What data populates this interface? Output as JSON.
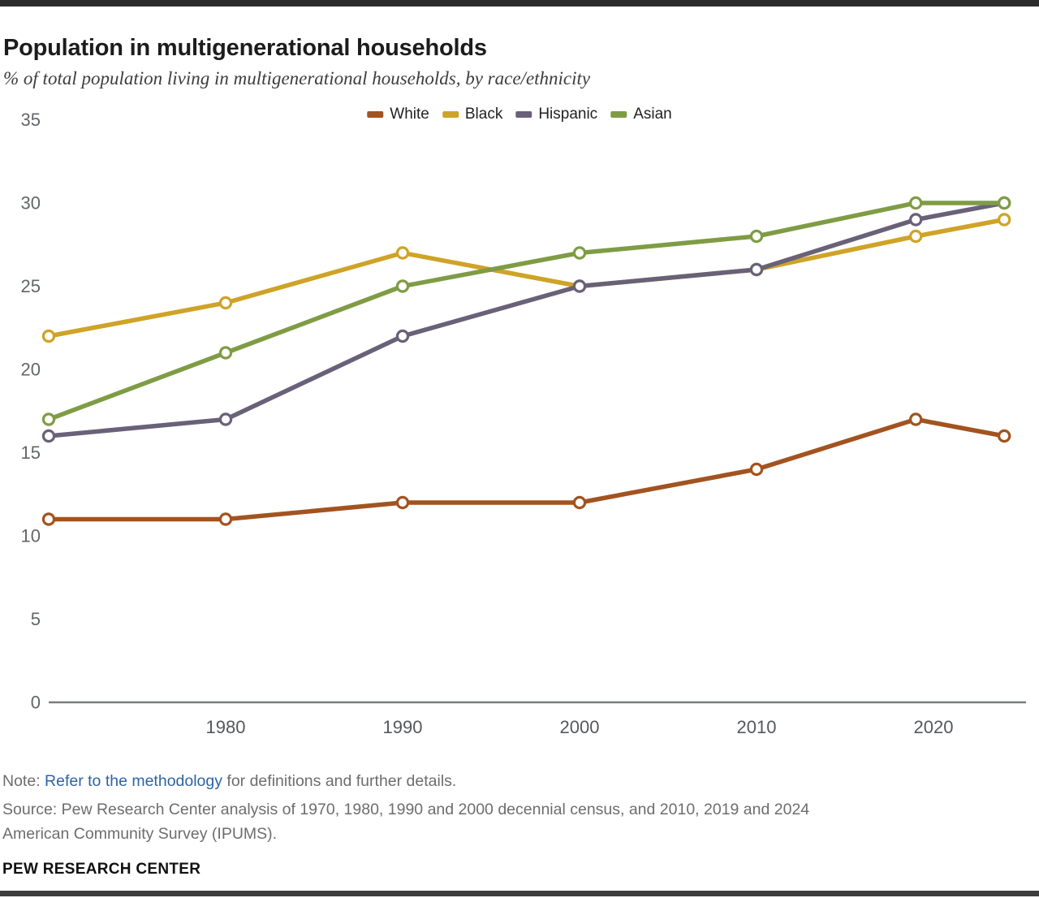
{
  "page": {
    "title": "Population in multigenerational households",
    "subtitle": "% of total population living in multigenerational households, by race/ethnicity",
    "note_prefix": "Note: ",
    "note_link": "Refer to the methodology",
    "note_suffix": " for definitions and further details.",
    "source_line1": "Source: Pew Research Center analysis of 1970, 1980, 1990 and 2000 decennial census, and 2010, 2019 and 2024",
    "source_line2": "American Community Survey (IPUMS).",
    "brand": "PEW RESEARCH CENTER"
  },
  "colors": {
    "accent_bar_top": "#2b2b2b",
    "accent_bar_bottom": "#3d3d3d",
    "link_blue": "#2e64a4",
    "axis_line": "#7a7d80",
    "y_tick_label": "#636669",
    "x_tick_label": "#55585c",
    "marker_fill": "#ffffff"
  },
  "chart_data": {
    "type": "line",
    "title": "Population in multigenerational households",
    "subtitle": "% of total population living in multigenerational households, by race/ethnicity",
    "x": [
      1970,
      1980,
      1990,
      2000,
      2010,
      2019,
      2024
    ],
    "x_tick_labels": [
      "1980",
      "1990",
      "2000",
      "2010",
      "2020"
    ],
    "x_tick_years": [
      1980,
      1990,
      2000,
      2010,
      2020
    ],
    "xlabel": "",
    "ylabel": "",
    "ylim": [
      0,
      35
    ],
    "y_ticks": [
      0,
      5,
      10,
      15,
      20,
      25,
      30,
      35
    ],
    "grid": false,
    "legend_position": "top",
    "series": [
      {
        "name": "White",
        "color": "#a3531f",
        "values": [
          11,
          11,
          12,
          12,
          14,
          17,
          16
        ]
      },
      {
        "name": "Black",
        "color": "#cfa327",
        "values": [
          22,
          24,
          27,
          25,
          26,
          28,
          29
        ]
      },
      {
        "name": "Hispanic",
        "color": "#696178",
        "values": [
          16,
          17,
          22,
          25,
          26,
          29,
          30
        ]
      },
      {
        "name": "Asian",
        "color": "#7f9c45",
        "values": [
          17,
          21,
          25,
          27,
          28,
          30,
          30
        ]
      }
    ]
  }
}
